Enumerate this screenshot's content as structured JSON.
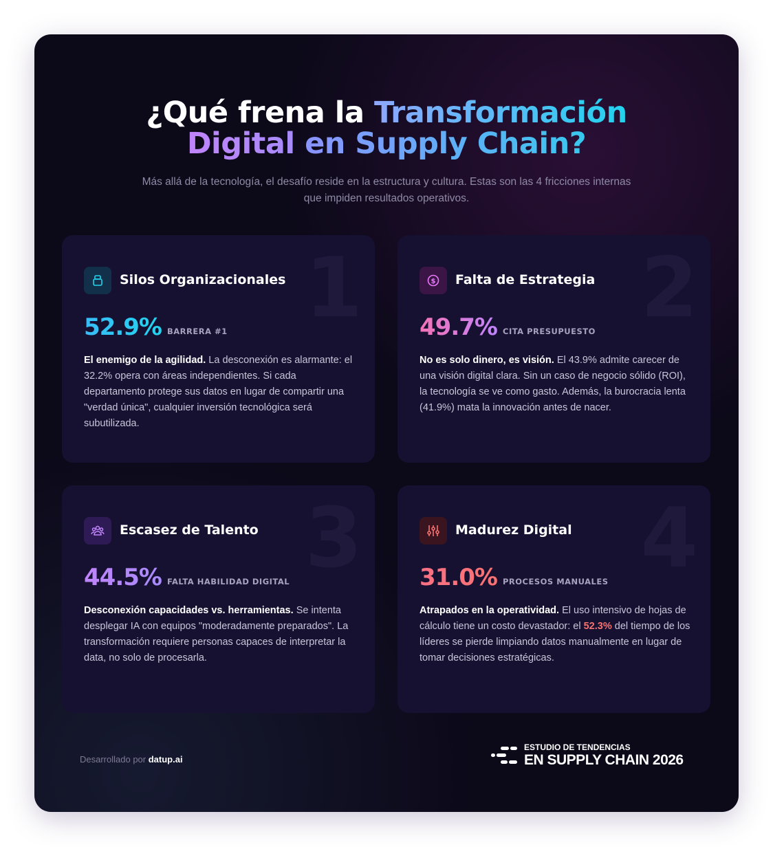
{
  "header": {
    "title": {
      "line1_plain": "¿Qué frena la",
      "line1_accent": "Transformación",
      "line2_accent": "Digital",
      "line2_rest": "en Supply Chain?"
    },
    "subtitle": "Más allá de la tecnología, el desafío reside en la estructura y cultura. Estas son las 4 fricciones internas que impiden resultados operativos."
  },
  "cards": [
    {
      "number": "1",
      "title": "Silos Organizacionales",
      "stat": "52.9%",
      "stat_label": "BARRERA #1",
      "lead": "El enemigo de la agilidad.",
      "body": "La desconexión es alarmante: el 32.2% opera con áreas independientes. Si cada departamento protege sus datos en lugar de compartir una \"verdad única\", cualquier inversión tecnológica será subutilizada."
    },
    {
      "number": "2",
      "title": "Falta de Estrategia",
      "stat": "49.7%",
      "stat_label": "CITA PRESUPUESTO",
      "lead": "No es solo dinero, es visión.",
      "body": "El 43.9% admite carecer de una visión digital clara. Sin un caso de negocio sólido (ROI), la tecnología se ve como gasto. Además, la burocracia lenta (41.9%) mata la innovación antes de nacer."
    },
    {
      "number": "3",
      "title": "Escasez de Talento",
      "stat": "44.5%",
      "stat_label": "FALTA HABILIDAD DIGITAL",
      "lead": "Desconexión capacidades vs. herramientas.",
      "body": "Se intenta desplegar IA con equipos \"moderadamente preparados\". La transformación requiere personas capaces de interpretar la data, no solo de procesarla."
    },
    {
      "number": "4",
      "title": "Madurez Digital",
      "stat": "31.0%",
      "stat_label": "PROCESOS MANUALES",
      "lead": "Atrapados en la operatividad.",
      "body": "El uso intensivo de hojas de cálculo tiene un costo devastador: el",
      "highlight": "52.3%",
      "body_end": "del tiempo de los líderes se pierde limpiando datos manualmente en lugar de tomar decisiones estratégicas."
    }
  ],
  "footer": {
    "credit_prefix": "Desarrollado por",
    "credit_brand": "datup.ai",
    "logo_top": "ESTUDIO DE TENDENCIAS",
    "logo_bottom": "EN SUPPLY CHAIN 2026"
  }
}
